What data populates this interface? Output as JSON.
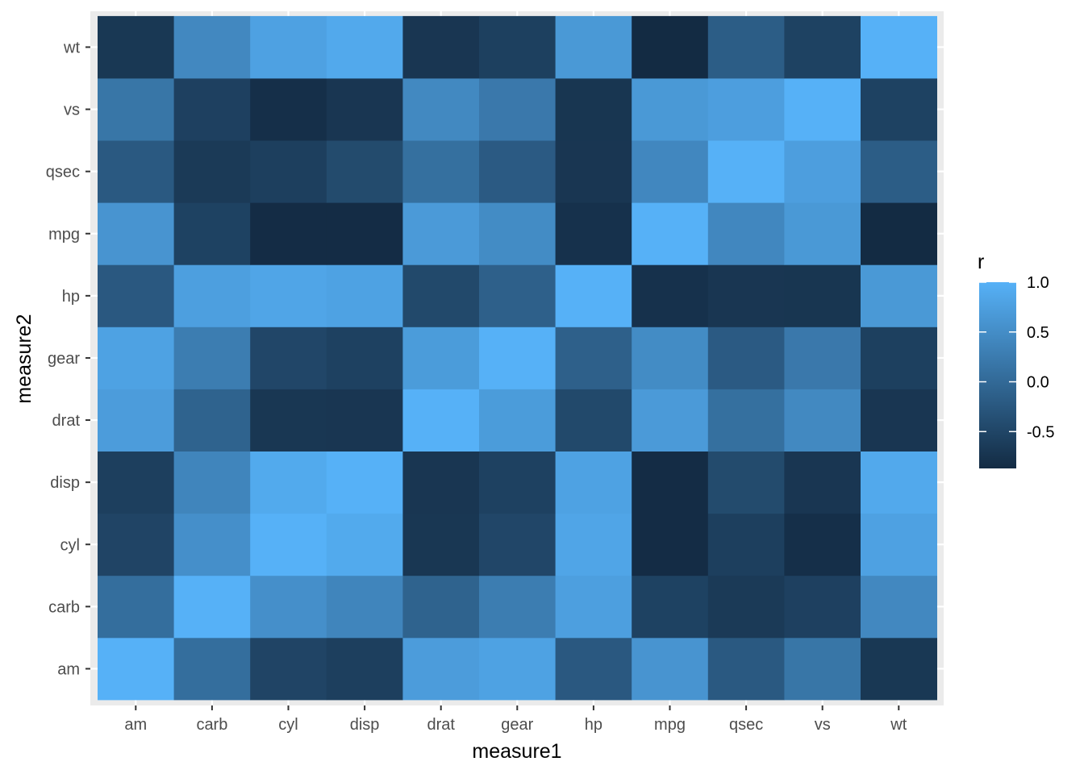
{
  "chart_data": {
    "type": "heatmap",
    "title": "",
    "xlabel": "measure1",
    "ylabel": "measure2",
    "x": [
      "am",
      "carb",
      "cyl",
      "disp",
      "drat",
      "gear",
      "hp",
      "mpg",
      "qsec",
      "vs",
      "wt"
    ],
    "y": [
      "am",
      "carb",
      "cyl",
      "disp",
      "drat",
      "gear",
      "hp",
      "mpg",
      "qsec",
      "vs",
      "wt"
    ],
    "values": [
      [
        1.0,
        0.06,
        -0.52,
        -0.59,
        0.71,
        0.79,
        -0.24,
        0.6,
        -0.23,
        0.17,
        -0.69
      ],
      [
        0.06,
        1.0,
        0.53,
        0.39,
        -0.09,
        0.27,
        0.75,
        -0.55,
        -0.66,
        -0.57,
        0.43
      ],
      [
        -0.52,
        0.53,
        1.0,
        0.9,
        -0.7,
        -0.49,
        0.83,
        -0.85,
        -0.59,
        -0.81,
        0.78
      ],
      [
        -0.59,
        0.39,
        0.9,
        1.0,
        -0.71,
        -0.56,
        0.79,
        -0.85,
        -0.43,
        -0.71,
        0.89
      ],
      [
        0.71,
        -0.09,
        -0.7,
        -0.71,
        1.0,
        0.7,
        -0.45,
        0.68,
        0.09,
        0.44,
        -0.71
      ],
      [
        0.79,
        0.27,
        -0.49,
        -0.56,
        0.7,
        1.0,
        -0.13,
        0.48,
        -0.21,
        0.21,
        -0.58
      ],
      [
        -0.24,
        0.75,
        0.83,
        0.79,
        -0.45,
        -0.13,
        1.0,
        -0.78,
        -0.71,
        -0.72,
        0.66
      ],
      [
        0.6,
        -0.55,
        -0.85,
        -0.85,
        0.68,
        0.48,
        -0.78,
        1.0,
        0.42,
        0.66,
        -0.87
      ],
      [
        -0.23,
        -0.66,
        -0.59,
        -0.43,
        0.09,
        -0.21,
        -0.71,
        0.42,
        1.0,
        0.74,
        -0.17
      ],
      [
        0.17,
        -0.57,
        -0.81,
        -0.71,
        0.44,
        0.21,
        -0.72,
        0.66,
        0.74,
        1.0,
        -0.55
      ],
      [
        -0.69,
        0.43,
        0.78,
        0.89,
        -0.71,
        -0.58,
        0.66,
        -0.87,
        -0.17,
        -0.55,
        1.0
      ]
    ],
    "legend": {
      "title": "r",
      "breaks": [
        1.0,
        0.5,
        0.0,
        -0.5
      ],
      "labels": [
        "1.0",
        "0.5",
        "0.0",
        "-0.5"
      ],
      "range": [
        -0.87,
        1.0
      ],
      "placement": "right"
    },
    "colors": {
      "low": "#132B43",
      "high": "#56B1F7",
      "panel_background": "#EBEBEB",
      "grid": "#FFFFFF"
    }
  }
}
